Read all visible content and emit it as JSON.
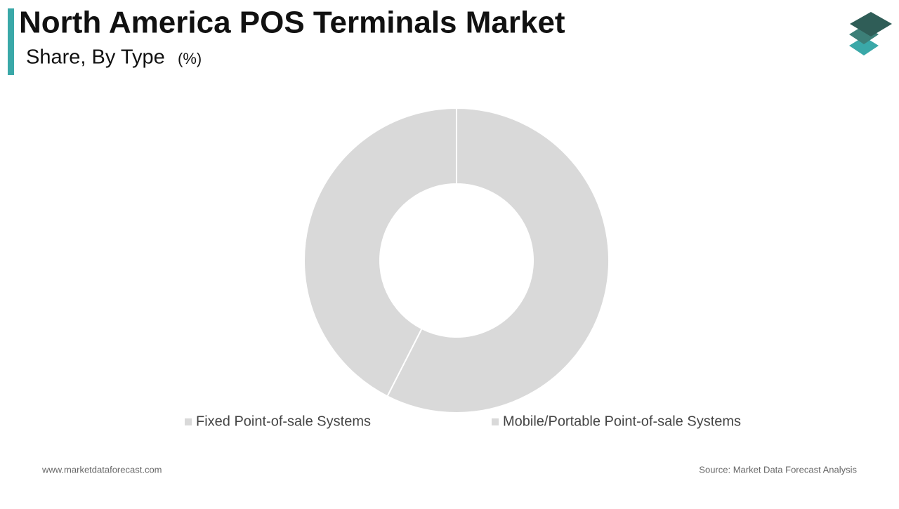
{
  "chart_data": {
    "type": "donut",
    "title": "North America POS Terminals Market",
    "subtitle": "Share, By Type",
    "unit_label": "(%)",
    "categories": [
      "Fixed Point-of-sale Systems",
      "Mobile/Portable Point-of-sale Systems"
    ],
    "values": [
      57.5,
      42.5
    ],
    "colors": [
      "#d9d9d9",
      "#d9d9d9"
    ],
    "footer_left": "www.marketdataforecast.com",
    "footer_right": "Source: Market Data Forecast Analysis"
  }
}
